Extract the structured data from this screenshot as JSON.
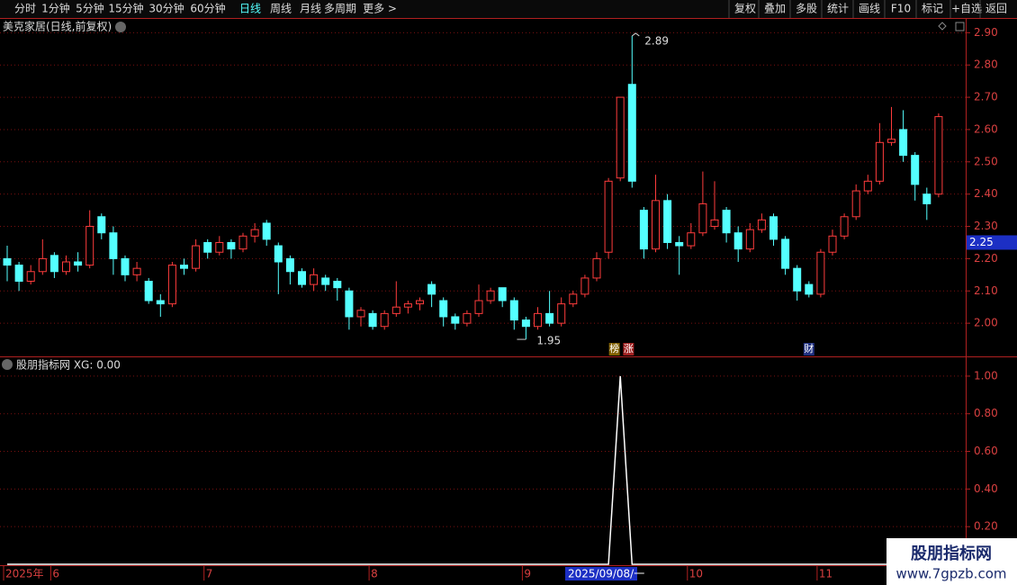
{
  "toolbar": {
    "left": [
      "分时",
      "1分钟",
      "5分钟",
      "15分钟",
      "30分钟",
      "60分钟",
      "日线",
      "周线",
      "月线",
      "多周期",
      "更多 >"
    ],
    "right": [
      "复权",
      "叠加",
      "多股",
      "统计",
      "画线",
      "F10",
      "标记",
      "+自选",
      "返回"
    ]
  },
  "chart_data": [
    {
      "type": "candlestick",
      "title": "美克家居(日线,前复权)",
      "up_color": "#ff3c3c",
      "down_color": "#54ffff",
      "categories": [
        "2025年",
        null,
        null,
        null,
        "6",
        null,
        null,
        null,
        null,
        null,
        null,
        null,
        null,
        null,
        null,
        null,
        null,
        "7",
        null,
        null,
        null,
        null,
        null,
        null,
        null,
        null,
        null,
        null,
        null,
        null,
        null,
        "8",
        null,
        null,
        null,
        null,
        null,
        null,
        null,
        null,
        null,
        null,
        null,
        null,
        "9",
        null,
        null,
        null,
        null,
        null,
        null,
        null,
        null,
        null,
        null,
        null,
        null,
        null,
        "10",
        null,
        null,
        null,
        null,
        null,
        null,
        null,
        null,
        null,
        null,
        "11",
        null,
        null,
        null,
        null,
        null,
        null,
        null,
        null,
        null,
        null
      ],
      "open": [
        2.2,
        2.18,
        2.13,
        2.16,
        2.21,
        2.16,
        2.19,
        2.18,
        2.33,
        2.28,
        2.2,
        2.15,
        2.13,
        2.07,
        2.06,
        2.18,
        2.17,
        2.25,
        2.22,
        2.25,
        2.23,
        2.27,
        2.31,
        2.24,
        2.2,
        2.16,
        2.12,
        2.14,
        2.13,
        2.1,
        2.02,
        2.03,
        1.99,
        2.03,
        2.05,
        2.06,
        2.12,
        2.07,
        2.02,
        2.0,
        2.03,
        2.07,
        2.11,
        2.07,
        2.01,
        1.99,
        2.03,
        2.0,
        2.06,
        2.09,
        2.14,
        2.22,
        2.45,
        2.74,
        2.35,
        2.23,
        2.38,
        2.25,
        2.24,
        2.28,
        2.3,
        2.35,
        2.28,
        2.23,
        2.29,
        2.33,
        2.26,
        2.17,
        2.12,
        2.09,
        2.22,
        2.27,
        2.33,
        2.41,
        2.44,
        2.56,
        2.6,
        2.52,
        2.4,
        2.4
      ],
      "high": [
        2.24,
        2.19,
        2.18,
        2.26,
        2.22,
        2.21,
        2.22,
        2.35,
        2.34,
        2.3,
        2.21,
        2.19,
        2.14,
        2.09,
        2.19,
        2.2,
        2.26,
        2.26,
        2.27,
        2.26,
        2.28,
        2.31,
        2.32,
        2.25,
        2.21,
        2.17,
        2.17,
        2.15,
        2.14,
        2.11,
        2.05,
        2.04,
        2.04,
        2.13,
        2.07,
        2.08,
        2.13,
        2.08,
        2.03,
        2.04,
        2.12,
        2.11,
        2.11,
        2.08,
        2.02,
        2.05,
        2.1,
        2.08,
        2.1,
        2.15,
        2.22,
        2.45,
        2.7,
        2.89,
        2.36,
        2.46,
        2.4,
        2.27,
        2.31,
        2.47,
        2.44,
        2.36,
        2.3,
        2.31,
        2.34,
        2.34,
        2.27,
        2.18,
        2.13,
        2.23,
        2.29,
        2.34,
        2.43,
        2.46,
        2.62,
        2.67,
        2.66,
        2.53,
        2.42,
        2.65
      ],
      "low": [
        2.13,
        2.1,
        2.12,
        2.15,
        2.14,
        2.15,
        2.16,
        2.17,
        2.26,
        2.15,
        2.13,
        2.13,
        2.06,
        2.02,
        2.05,
        2.15,
        2.16,
        2.2,
        2.21,
        2.2,
        2.22,
        2.25,
        2.24,
        2.09,
        2.12,
        2.11,
        2.1,
        2.1,
        2.07,
        1.98,
        1.99,
        1.98,
        1.98,
        2.02,
        2.03,
        2.04,
        2.05,
        1.99,
        1.98,
        1.99,
        2.02,
        2.06,
        2.05,
        1.98,
        1.95,
        1.98,
        1.99,
        1.99,
        2.05,
        2.08,
        2.13,
        2.2,
        2.44,
        2.42,
        2.2,
        2.22,
        2.23,
        2.15,
        2.23,
        2.27,
        2.29,
        2.25,
        2.19,
        2.22,
        2.28,
        2.24,
        2.15,
        2.07,
        2.08,
        2.08,
        2.21,
        2.26,
        2.32,
        2.4,
        2.43,
        2.55,
        2.5,
        2.38,
        2.32,
        2.39
      ],
      "close": [
        2.18,
        2.13,
        2.16,
        2.2,
        2.16,
        2.19,
        2.18,
        2.3,
        2.28,
        2.2,
        2.15,
        2.17,
        2.07,
        2.06,
        2.18,
        2.17,
        2.24,
        2.22,
        2.25,
        2.23,
        2.27,
        2.29,
        2.26,
        2.19,
        2.16,
        2.12,
        2.15,
        2.12,
        2.11,
        2.02,
        2.04,
        1.99,
        2.03,
        2.05,
        2.06,
        2.07,
        2.09,
        2.02,
        2.0,
        2.03,
        2.07,
        2.1,
        2.07,
        2.01,
        1.99,
        2.03,
        2.0,
        2.06,
        2.09,
        2.14,
        2.2,
        2.44,
        2.7,
        2.44,
        2.23,
        2.38,
        2.25,
        2.24,
        2.28,
        2.37,
        2.32,
        2.28,
        2.23,
        2.29,
        2.32,
        2.26,
        2.17,
        2.1,
        2.09,
        2.22,
        2.27,
        2.33,
        2.41,
        2.44,
        2.56,
        2.57,
        2.52,
        2.43,
        2.37,
        2.64
      ],
      "ylim": [
        1.9,
        2.94
      ],
      "yticks": [
        {
          "value": 2.0,
          "label": "2.00"
        },
        {
          "value": 2.1,
          "label": "2.10"
        },
        {
          "value": 2.2,
          "label": "2.20"
        },
        {
          "value": 2.3,
          "label": "2.30"
        },
        {
          "value": 2.4,
          "label": "2.40"
        },
        {
          "value": 2.5,
          "label": "2.50"
        },
        {
          "value": 2.6,
          "label": "2.60"
        },
        {
          "value": 2.7,
          "label": "2.70"
        },
        {
          "value": 2.8,
          "label": "2.80"
        },
        {
          "value": 2.9,
          "label": "2.90"
        }
      ],
      "grid": true,
      "max_label": 2.89,
      "min_label": 1.95,
      "last_price": 2.25,
      "tags": [
        "榜",
        "涨",
        "财"
      ],
      "cursor_label": "2025/09/08/一"
    },
    {
      "type": "line",
      "title": "股朋指标网 XG: 0.00",
      "color": "#ffffff",
      "values": [
        0,
        0,
        0,
        0,
        0,
        0,
        0,
        0,
        0,
        0,
        0,
        0,
        0,
        0,
        0,
        0,
        0,
        0,
        0,
        0,
        0,
        0,
        0,
        0,
        0,
        0,
        0,
        0,
        0,
        0,
        0,
        0,
        0,
        0,
        0,
        0,
        0,
        0,
        0,
        0,
        0,
        0,
        0,
        0,
        0,
        0,
        0,
        0,
        0,
        0,
        0,
        0,
        1,
        0,
        0,
        0,
        0,
        0,
        0,
        0,
        0,
        0,
        0,
        0,
        0,
        0,
        0,
        0,
        0,
        0,
        0,
        0,
        0,
        0,
        0,
        0,
        0,
        0,
        0,
        0
      ],
      "ylim": [
        0,
        1.1
      ],
      "yticks": [
        {
          "value": 0.2,
          "label": "0.20"
        },
        {
          "value": 0.4,
          "label": "0.40"
        },
        {
          "value": 0.6,
          "label": "0.60"
        },
        {
          "value": 0.8,
          "label": "0.80"
        },
        {
          "value": 1.0,
          "label": "1.00"
        }
      ],
      "grid": true
    }
  ],
  "watermark": {
    "title": "股朋指标网",
    "url": "www.7gpzb.com"
  }
}
